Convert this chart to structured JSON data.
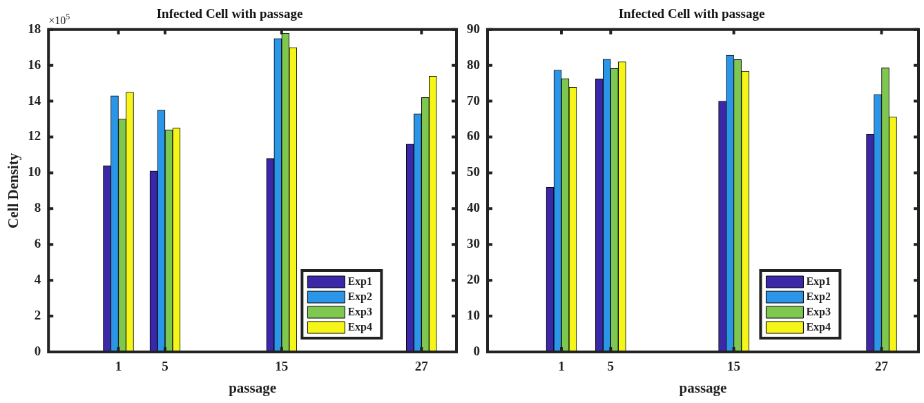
{
  "chart_data": [
    {
      "type": "bar",
      "title": "Infected Cell with passage",
      "xlabel": "passage",
      "ylabel": "Cell Density",
      "annotations": [
        "×10$^{5}$"
      ],
      "x": [
        1,
        5,
        15,
        27
      ],
      "xlim": [
        -5,
        30
      ],
      "xticks": [
        1,
        5,
        15,
        27
      ],
      "ylim": [
        0,
        18
      ],
      "yticks": [
        0,
        2,
        4,
        6,
        8,
        10,
        12,
        14,
        16,
        18
      ],
      "legend": "bottom right",
      "series": [
        {
          "name": "Exp1",
          "color": "#3b28a8",
          "values": [
            10.4,
            10.1,
            10.8,
            11.6
          ]
        },
        {
          "name": "Exp2",
          "color": "#2b96e8",
          "values": [
            14.3,
            13.5,
            17.5,
            13.3
          ]
        },
        {
          "name": "Exp3",
          "color": "#7ec850",
          "values": [
            13.0,
            12.4,
            17.8,
            14.2
          ]
        },
        {
          "name": "Exp4",
          "color": "#f5f518",
          "values": [
            14.5,
            12.5,
            17.0,
            15.4
          ]
        }
      ]
    },
    {
      "type": "bar",
      "title": "Infected Cell with passage",
      "xlabel": "passage",
      "x": [
        1,
        5,
        15,
        27
      ],
      "xlim": [
        -5,
        30
      ],
      "xticks": [
        1,
        5,
        15,
        27
      ],
      "ylim": [
        0,
        90
      ],
      "yticks": [
        0,
        10,
        20,
        30,
        40,
        50,
        60,
        70,
        80,
        90
      ],
      "legend": "bottom right",
      "series": [
        {
          "name": "Exp1",
          "color": "#3b28a8",
          "values": [
            46,
            76.2,
            70,
            60.8
          ]
        },
        {
          "name": "Exp2",
          "color": "#2b96e8",
          "values": [
            78.7,
            81.7,
            82.8,
            71.9
          ]
        },
        {
          "name": "Exp3",
          "color": "#7ec850",
          "values": [
            76.3,
            79.1,
            81.6,
            79.3
          ]
        },
        {
          "name": "Exp4",
          "color": "#f5f518",
          "values": [
            73.9,
            81,
            78.4,
            65.6
          ]
        }
      ]
    }
  ]
}
